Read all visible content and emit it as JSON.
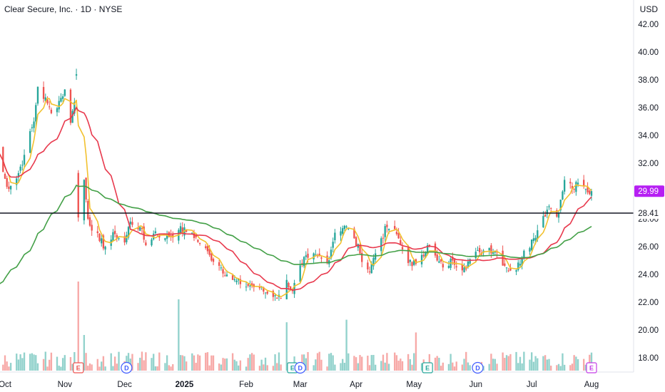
{
  "header": {
    "title": "Clear Secure, Inc. · 1D · NYSE",
    "currency": "USD"
  },
  "chart_data": {
    "type": "candlestick",
    "ylim": [
      17,
      43
    ],
    "y_ticks": [
      18,
      20,
      22,
      24,
      26,
      28,
      30,
      32,
      34,
      36,
      38,
      40,
      42
    ],
    "x_labels": [
      {
        "label": "Oct",
        "date": "2024-10-01",
        "bold": false
      },
      {
        "label": "Nov",
        "date": "2024-11-01",
        "bold": false
      },
      {
        "label": "Dec",
        "date": "2024-12-02",
        "bold": false
      },
      {
        "label": "2025",
        "date": "2025-01-02",
        "bold": true
      },
      {
        "label": "Feb",
        "date": "2025-02-03",
        "bold": false
      },
      {
        "label": "Mar",
        "date": "2025-03-03",
        "bold": false
      },
      {
        "label": "Apr",
        "date": "2025-04-01",
        "bold": false
      },
      {
        "label": "May",
        "date": "2025-05-01",
        "bold": false
      },
      {
        "label": "Jun",
        "date": "2025-06-02",
        "bold": false
      },
      {
        "label": "Jul",
        "date": "2025-07-01",
        "bold": false
      },
      {
        "label": "Aug",
        "date": "2025-08-01",
        "bold": false
      }
    ],
    "close_anchors": [
      [
        "2024-09-27",
        33.0
      ],
      [
        "2024-10-02",
        30.3
      ],
      [
        "2024-10-07",
        30.9
      ],
      [
        "2024-10-11",
        32.6
      ],
      [
        "2024-10-16",
        35.0
      ],
      [
        "2024-10-18",
        37.5
      ],
      [
        "2024-10-23",
        36.3
      ],
      [
        "2024-10-25",
        35.6
      ],
      [
        "2024-10-30",
        36.7
      ],
      [
        "2024-11-01",
        37.3
      ],
      [
        "2024-11-04",
        34.9
      ],
      [
        "2024-11-06",
        36.4
      ],
      [
        "2024-11-11",
        30.8
      ],
      [
        "2024-11-13",
        28.0
      ],
      [
        "2024-11-19",
        26.4
      ],
      [
        "2024-11-22",
        26.0
      ],
      [
        "2024-11-27",
        26.9
      ],
      [
        "2024-12-02",
        26.3
      ],
      [
        "2024-12-05",
        27.8
      ],
      [
        "2024-12-10",
        27.4
      ],
      [
        "2024-12-13",
        26.1
      ],
      [
        "2024-12-18",
        27.1
      ],
      [
        "2024-12-23",
        26.6
      ],
      [
        "2024-12-30",
        27.2
      ],
      [
        "2025-01-06",
        27.0
      ],
      [
        "2025-01-10",
        26.2
      ],
      [
        "2025-01-15",
        25.4
      ],
      [
        "2025-01-21",
        24.5
      ],
      [
        "2025-01-27",
        23.6
      ],
      [
        "2025-01-31",
        23.3
      ],
      [
        "2025-02-05",
        23.2
      ],
      [
        "2025-02-10",
        23.0
      ],
      [
        "2025-02-13",
        22.7
      ],
      [
        "2025-02-18",
        22.5
      ],
      [
        "2025-02-21",
        22.3
      ],
      [
        "2025-02-24",
        23.6
      ],
      [
        "2025-02-27",
        22.8
      ],
      [
        "2025-03-04",
        24.8
      ],
      [
        "2025-03-07",
        25.2
      ],
      [
        "2025-03-12",
        25.3
      ],
      [
        "2025-03-17",
        24.8
      ],
      [
        "2025-03-21",
        27.0
      ],
      [
        "2025-03-26",
        27.5
      ],
      [
        "2025-03-31",
        26.6
      ],
      [
        "2025-04-03",
        25.5
      ],
      [
        "2025-04-08",
        24.2
      ],
      [
        "2025-04-10",
        25.2
      ],
      [
        "2025-04-14",
        26.6
      ],
      [
        "2025-04-17",
        27.4
      ],
      [
        "2025-04-22",
        26.9
      ],
      [
        "2025-04-25",
        25.8
      ],
      [
        "2025-04-30",
        24.6
      ],
      [
        "2025-05-05",
        25.4
      ],
      [
        "2025-05-08",
        26.1
      ],
      [
        "2025-05-13",
        25.0
      ],
      [
        "2025-05-16",
        24.5
      ],
      [
        "2025-05-21",
        25.0
      ],
      [
        "2025-05-27",
        24.5
      ],
      [
        "2025-05-30",
        25.1
      ],
      [
        "2025-06-04",
        25.6
      ],
      [
        "2025-06-09",
        25.9
      ],
      [
        "2025-06-13",
        25.6
      ],
      [
        "2025-06-18",
        24.5
      ],
      [
        "2025-06-23",
        24.3
      ],
      [
        "2025-06-27",
        25.7
      ],
      [
        "2025-07-02",
        26.6
      ],
      [
        "2025-07-07",
        28.2
      ],
      [
        "2025-07-10",
        28.9
      ],
      [
        "2025-07-15",
        28.4
      ],
      [
        "2025-07-18",
        30.8
      ],
      [
        "2025-07-23",
        30.1
      ],
      [
        "2025-07-25",
        30.6
      ],
      [
        "2025-07-30",
        29.9
      ],
      [
        "2025-08-01",
        29.99
      ]
    ],
    "gap_down": {
      "date": "2024-11-08",
      "open": 31.3,
      "high": 31.5,
      "close": 28.1,
      "low": 27.8
    },
    "spike_up": {
      "date": "2024-11-07",
      "open": 38.3,
      "high": 38.8,
      "close": 38.4,
      "low": 38.0
    },
    "series": [
      {
        "name": "",
        "color": "#f2c12e",
        "kind": "sma",
        "window": 5
      },
      {
        "name": "",
        "color": "#e8394d",
        "kind": "sma",
        "window": 20
      },
      {
        "name": "",
        "color": "#43a047",
        "kind": "ema",
        "window": 200,
        "start_date": "2024-09-27",
        "start_value": 22.9
      }
    ],
    "up_color": "#26a69a",
    "down_color": "#ef5350",
    "volume": {
      "max": 3.5,
      "spikes": [
        [
          "2024-11-08",
          3.5
        ],
        [
          "2024-11-11",
          1.4
        ],
        [
          "2024-12-30",
          2.8
        ],
        [
          "2025-02-24",
          1.9
        ],
        [
          "2025-03-27",
          2.0
        ],
        [
          "2025-05-02",
          1.5
        ]
      ]
    },
    "horizontal_line": {
      "value": 28.41,
      "label": "28.41",
      "color": "#131722"
    },
    "last_price": {
      "value": 29.99,
      "label": "29.99",
      "color": "#b61ff3"
    },
    "events": [
      {
        "type": "E",
        "date": "2024-11-08",
        "color": "#ef5350"
      },
      {
        "type": "D",
        "date": "2024-12-03",
        "color": "#3d5afe"
      },
      {
        "type": "E",
        "date": "2025-02-27",
        "color": "#26a69a"
      },
      {
        "type": "D",
        "date": "2025-03-03",
        "color": "#3d5afe"
      },
      {
        "type": "E",
        "date": "2025-05-08",
        "color": "#26a69a"
      },
      {
        "type": "D",
        "date": "2025-06-03",
        "color": "#3d5afe"
      },
      {
        "type": "E",
        "date": "2025-08-01",
        "color": "#c43ee6"
      }
    ]
  }
}
